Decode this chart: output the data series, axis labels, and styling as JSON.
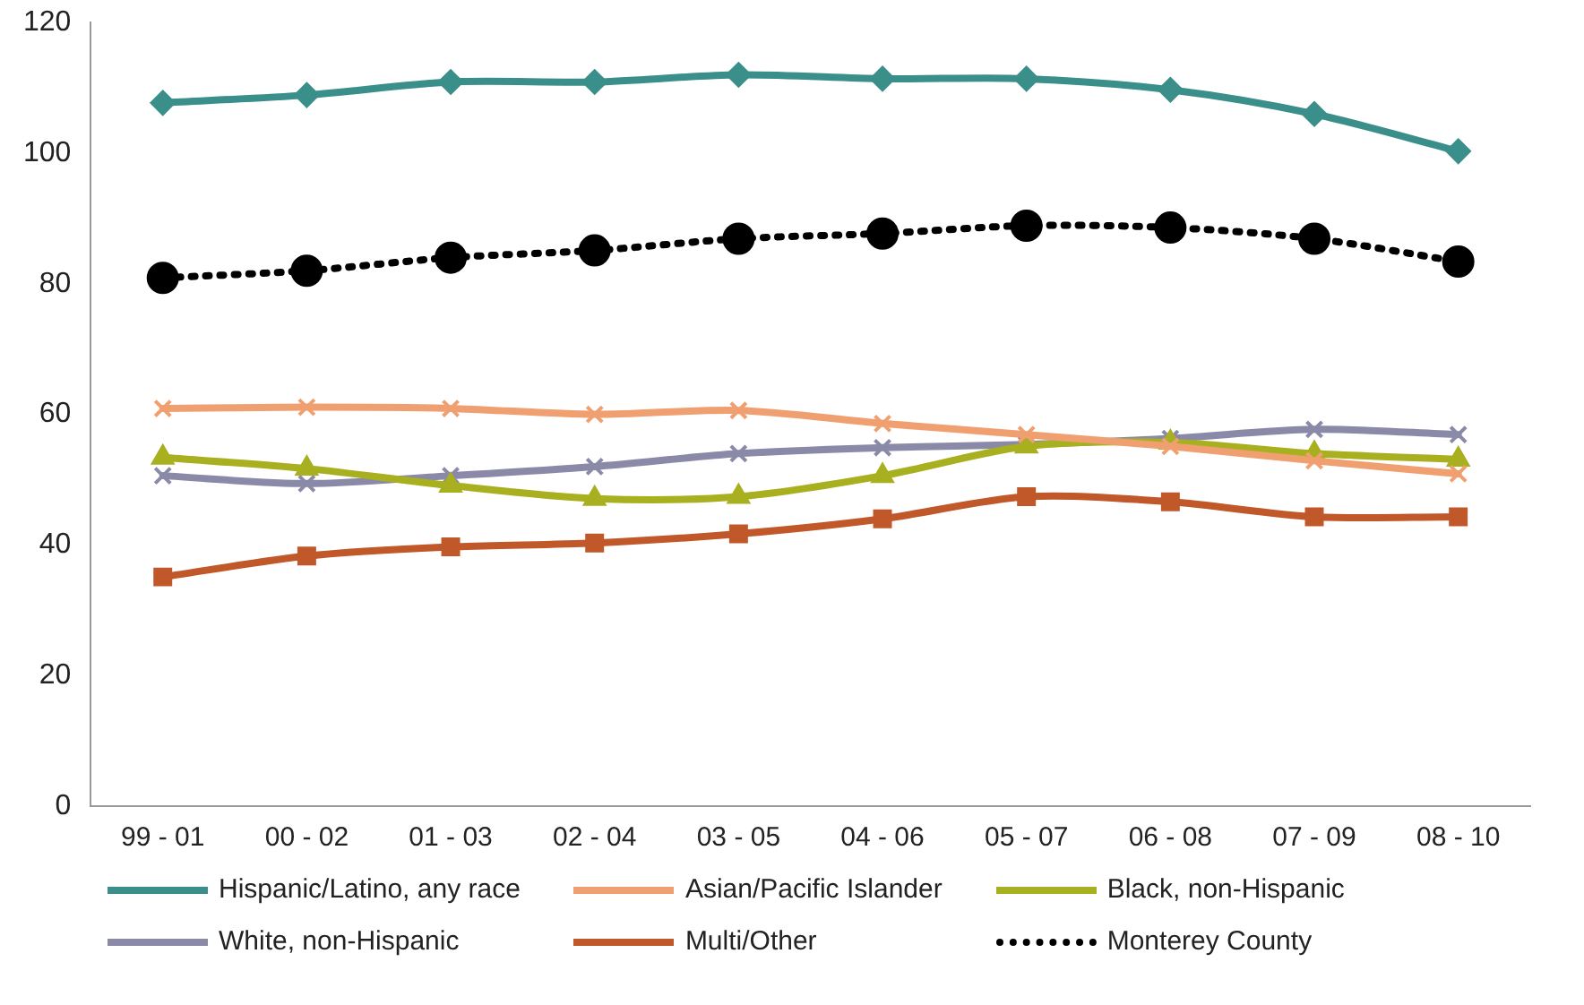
{
  "chart_data": {
    "type": "line",
    "categories": [
      "99 - 01",
      "00 - 02",
      "01 - 03",
      "02 - 04",
      "03 - 05",
      "04 - 06",
      "05 - 07",
      "06 - 08",
      "07 - 09",
      "08 - 10"
    ],
    "ylim": [
      0,
      120
    ],
    "yticks": [
      0,
      20,
      40,
      60,
      80,
      100,
      120
    ],
    "grid": false,
    "legend": "bottom",
    "series": [
      {
        "name": "Hispanic/Latino, any race",
        "color": "#3a8f8a",
        "marker": "diamond",
        "values": [
          107.7,
          108.9,
          110.9,
          110.9,
          112,
          111.4,
          111.4,
          109.7,
          106,
          100.3
        ]
      },
      {
        "name": "Asian/Pacific Islander",
        "color": "#f0a070",
        "marker": "cross",
        "values": [
          60.9,
          61.1,
          60.9,
          60,
          60.6,
          58.6,
          56.9,
          55.1,
          52.9,
          50.9
        ]
      },
      {
        "name": "Black, non-Hispanic",
        "color": "#a8b020",
        "marker": "triangle",
        "values": [
          53.4,
          51.7,
          49.1,
          47.1,
          47.4,
          50.6,
          55.1,
          55.7,
          54,
          53.1
        ]
      },
      {
        "name": "White, non-Hispanic",
        "color": "#8a8aa8",
        "marker": "cross",
        "values": [
          50.6,
          49.4,
          50.6,
          52,
          54,
          54.9,
          55.4,
          56.3,
          57.7,
          56.9
        ]
      },
      {
        "name": "Multi/Other",
        "color": "#c0582a",
        "marker": "square",
        "values": [
          35.1,
          38.3,
          39.7,
          40.3,
          41.7,
          44,
          47.4,
          46.6,
          44.3,
          44.3
        ]
      },
      {
        "name": "Monterey County",
        "color": "#000000",
        "marker": "circle",
        "line_style": "dotted",
        "values": [
          80.9,
          82,
          84,
          85.1,
          86.9,
          87.7,
          88.9,
          88.6,
          86.9,
          83.4
        ]
      }
    ]
  }
}
